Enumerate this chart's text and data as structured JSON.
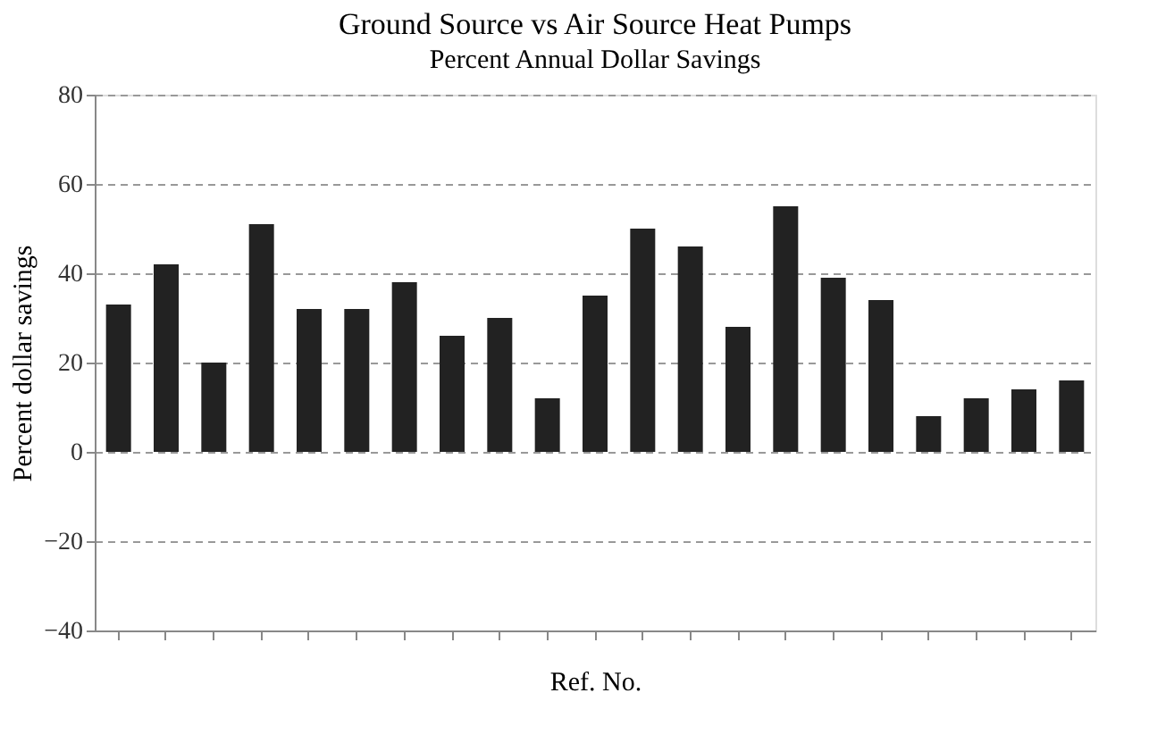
{
  "chart_data": {
    "type": "bar",
    "title": "Ground Source vs Air Source Heat Pumps",
    "subtitle": "Percent Annual Dollar Savings",
    "xlabel": "Ref. No.",
    "ylabel": "Percent dollar savings",
    "categories": [
      null,
      null,
      null,
      null,
      null,
      null,
      null,
      null,
      null,
      null,
      null,
      null,
      null,
      null,
      null,
      null,
      null,
      null,
      null,
      null,
      null
    ],
    "values": [
      33,
      42,
      20,
      51,
      32,
      32,
      38,
      26,
      30,
      12,
      35,
      50,
      46,
      28,
      55,
      39,
      34,
      8,
      12,
      14,
      16
    ],
    "color": "#222222",
    "ylim": [
      -40,
      80
    ],
    "yticks": [
      -40,
      -20,
      0,
      20,
      40,
      60,
      80
    ],
    "grid": "y"
  }
}
